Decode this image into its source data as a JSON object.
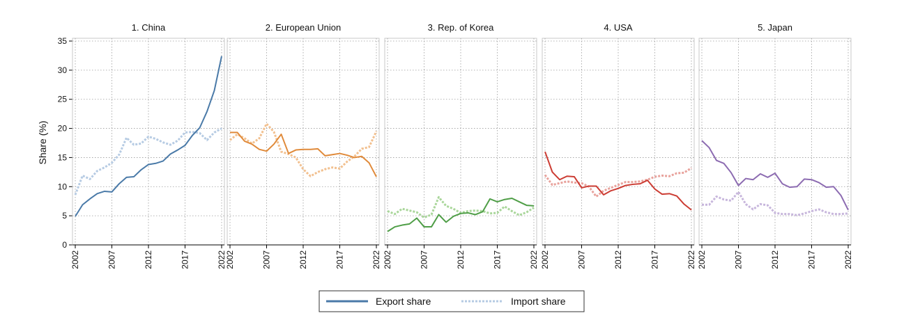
{
  "chart_data": {
    "type": "line",
    "ylabel": "Share (%)",
    "ylim": [
      0,
      35
    ],
    "yticks": [
      0,
      5,
      10,
      15,
      20,
      25,
      30,
      35
    ],
    "xlim": [
      2002,
      2022
    ],
    "xticks": [
      2002,
      2007,
      2012,
      2017,
      2022
    ],
    "grid": true,
    "legend": {
      "placement": "bottom-center",
      "items": [
        {
          "label": "Export share",
          "style": "solid",
          "color": "#4a7aa8"
        },
        {
          "label": "Import share",
          "style": "dotted",
          "color": "#b6cbe3"
        }
      ]
    },
    "years": [
      2002,
      2003,
      2004,
      2005,
      2006,
      2007,
      2008,
      2009,
      2010,
      2011,
      2012,
      2013,
      2014,
      2015,
      2016,
      2017,
      2018,
      2019,
      2020,
      2021,
      2022
    ],
    "panels": [
      {
        "title": "1. China",
        "export_color": "#4a7aa8",
        "import_color": "#b6cbe3",
        "export": [
          4.9,
          6.9,
          7.9,
          8.8,
          9.2,
          9.1,
          10.5,
          11.6,
          11.7,
          12.9,
          13.8,
          14.0,
          14.4,
          15.6,
          16.3,
          17.1,
          18.8,
          20.1,
          22.9,
          26.5,
          32.4
        ],
        "import": [
          8.6,
          11.9,
          11.3,
          12.7,
          13.3,
          14.1,
          15.5,
          18.4,
          17.2,
          17.4,
          18.6,
          18.2,
          17.6,
          17.2,
          17.9,
          19.3,
          19.4,
          19.2,
          18.0,
          19.3,
          20.0
        ]
      },
      {
        "title": "2. European Union",
        "export_color": "#e08a3a",
        "import_color": "#f2c08f",
        "export": [
          19.3,
          19.3,
          17.8,
          17.3,
          16.4,
          16.1,
          17.3,
          19.0,
          15.7,
          16.3,
          16.4,
          16.4,
          16.5,
          15.3,
          15.5,
          15.7,
          15.4,
          15.0,
          15.2,
          14.1,
          11.7
        ],
        "import": [
          18.0,
          19.0,
          18.3,
          17.4,
          18.3,
          20.8,
          19.4,
          16.0,
          15.6,
          15.0,
          13.0,
          11.8,
          12.5,
          13.0,
          13.3,
          13.1,
          14.3,
          15.2,
          16.5,
          16.8,
          19.5
        ]
      },
      {
        "title": "3. Rep. of Korea",
        "export_color": "#4f9e47",
        "import_color": "#a9d69a",
        "export": [
          2.3,
          3.1,
          3.4,
          3.6,
          4.6,
          3.1,
          3.1,
          5.2,
          3.9,
          4.9,
          5.4,
          5.5,
          5.2,
          5.7,
          7.9,
          7.4,
          7.8,
          8.0,
          7.4,
          6.8,
          6.7
        ],
        "import": [
          5.8,
          5.3,
          6.2,
          5.9,
          5.6,
          4.7,
          5.2,
          8.2,
          6.7,
          6.2,
          5.5,
          5.8,
          5.9,
          5.8,
          5.4,
          5.5,
          6.6,
          5.8,
          5.1,
          5.6,
          6.4
        ]
      },
      {
        "title": "4. USA",
        "export_color": "#cc3c33",
        "import_color": "#e8a29c",
        "export": [
          16.0,
          12.5,
          11.2,
          11.8,
          11.7,
          9.8,
          10.1,
          10.1,
          8.6,
          9.3,
          9.7,
          10.2,
          10.4,
          10.5,
          11.1,
          9.6,
          8.7,
          8.8,
          8.4,
          7.0,
          6.0
        ],
        "import": [
          12.0,
          10.3,
          10.6,
          10.9,
          10.7,
          10.6,
          10.0,
          8.3,
          9.3,
          9.8,
          10.3,
          10.8,
          10.8,
          10.9,
          11.2,
          11.7,
          11.9,
          11.8,
          12.3,
          12.4,
          13.2
        ]
      },
      {
        "title": "5. Japan",
        "export_color": "#8c6bb1",
        "import_color": "#c7b6dc",
        "export": [
          17.9,
          16.7,
          14.5,
          14.0,
          12.4,
          10.2,
          11.4,
          11.2,
          12.2,
          11.6,
          12.3,
          10.5,
          9.9,
          10.0,
          11.3,
          11.2,
          10.7,
          9.9,
          10.0,
          8.5,
          6.0
        ],
        "import": [
          6.9,
          6.9,
          8.3,
          7.8,
          7.6,
          9.1,
          7.0,
          6.1,
          7.0,
          6.8,
          5.5,
          5.3,
          5.3,
          5.1,
          5.4,
          5.8,
          6.1,
          5.6,
          5.3,
          5.3,
          5.4
        ]
      }
    ]
  }
}
